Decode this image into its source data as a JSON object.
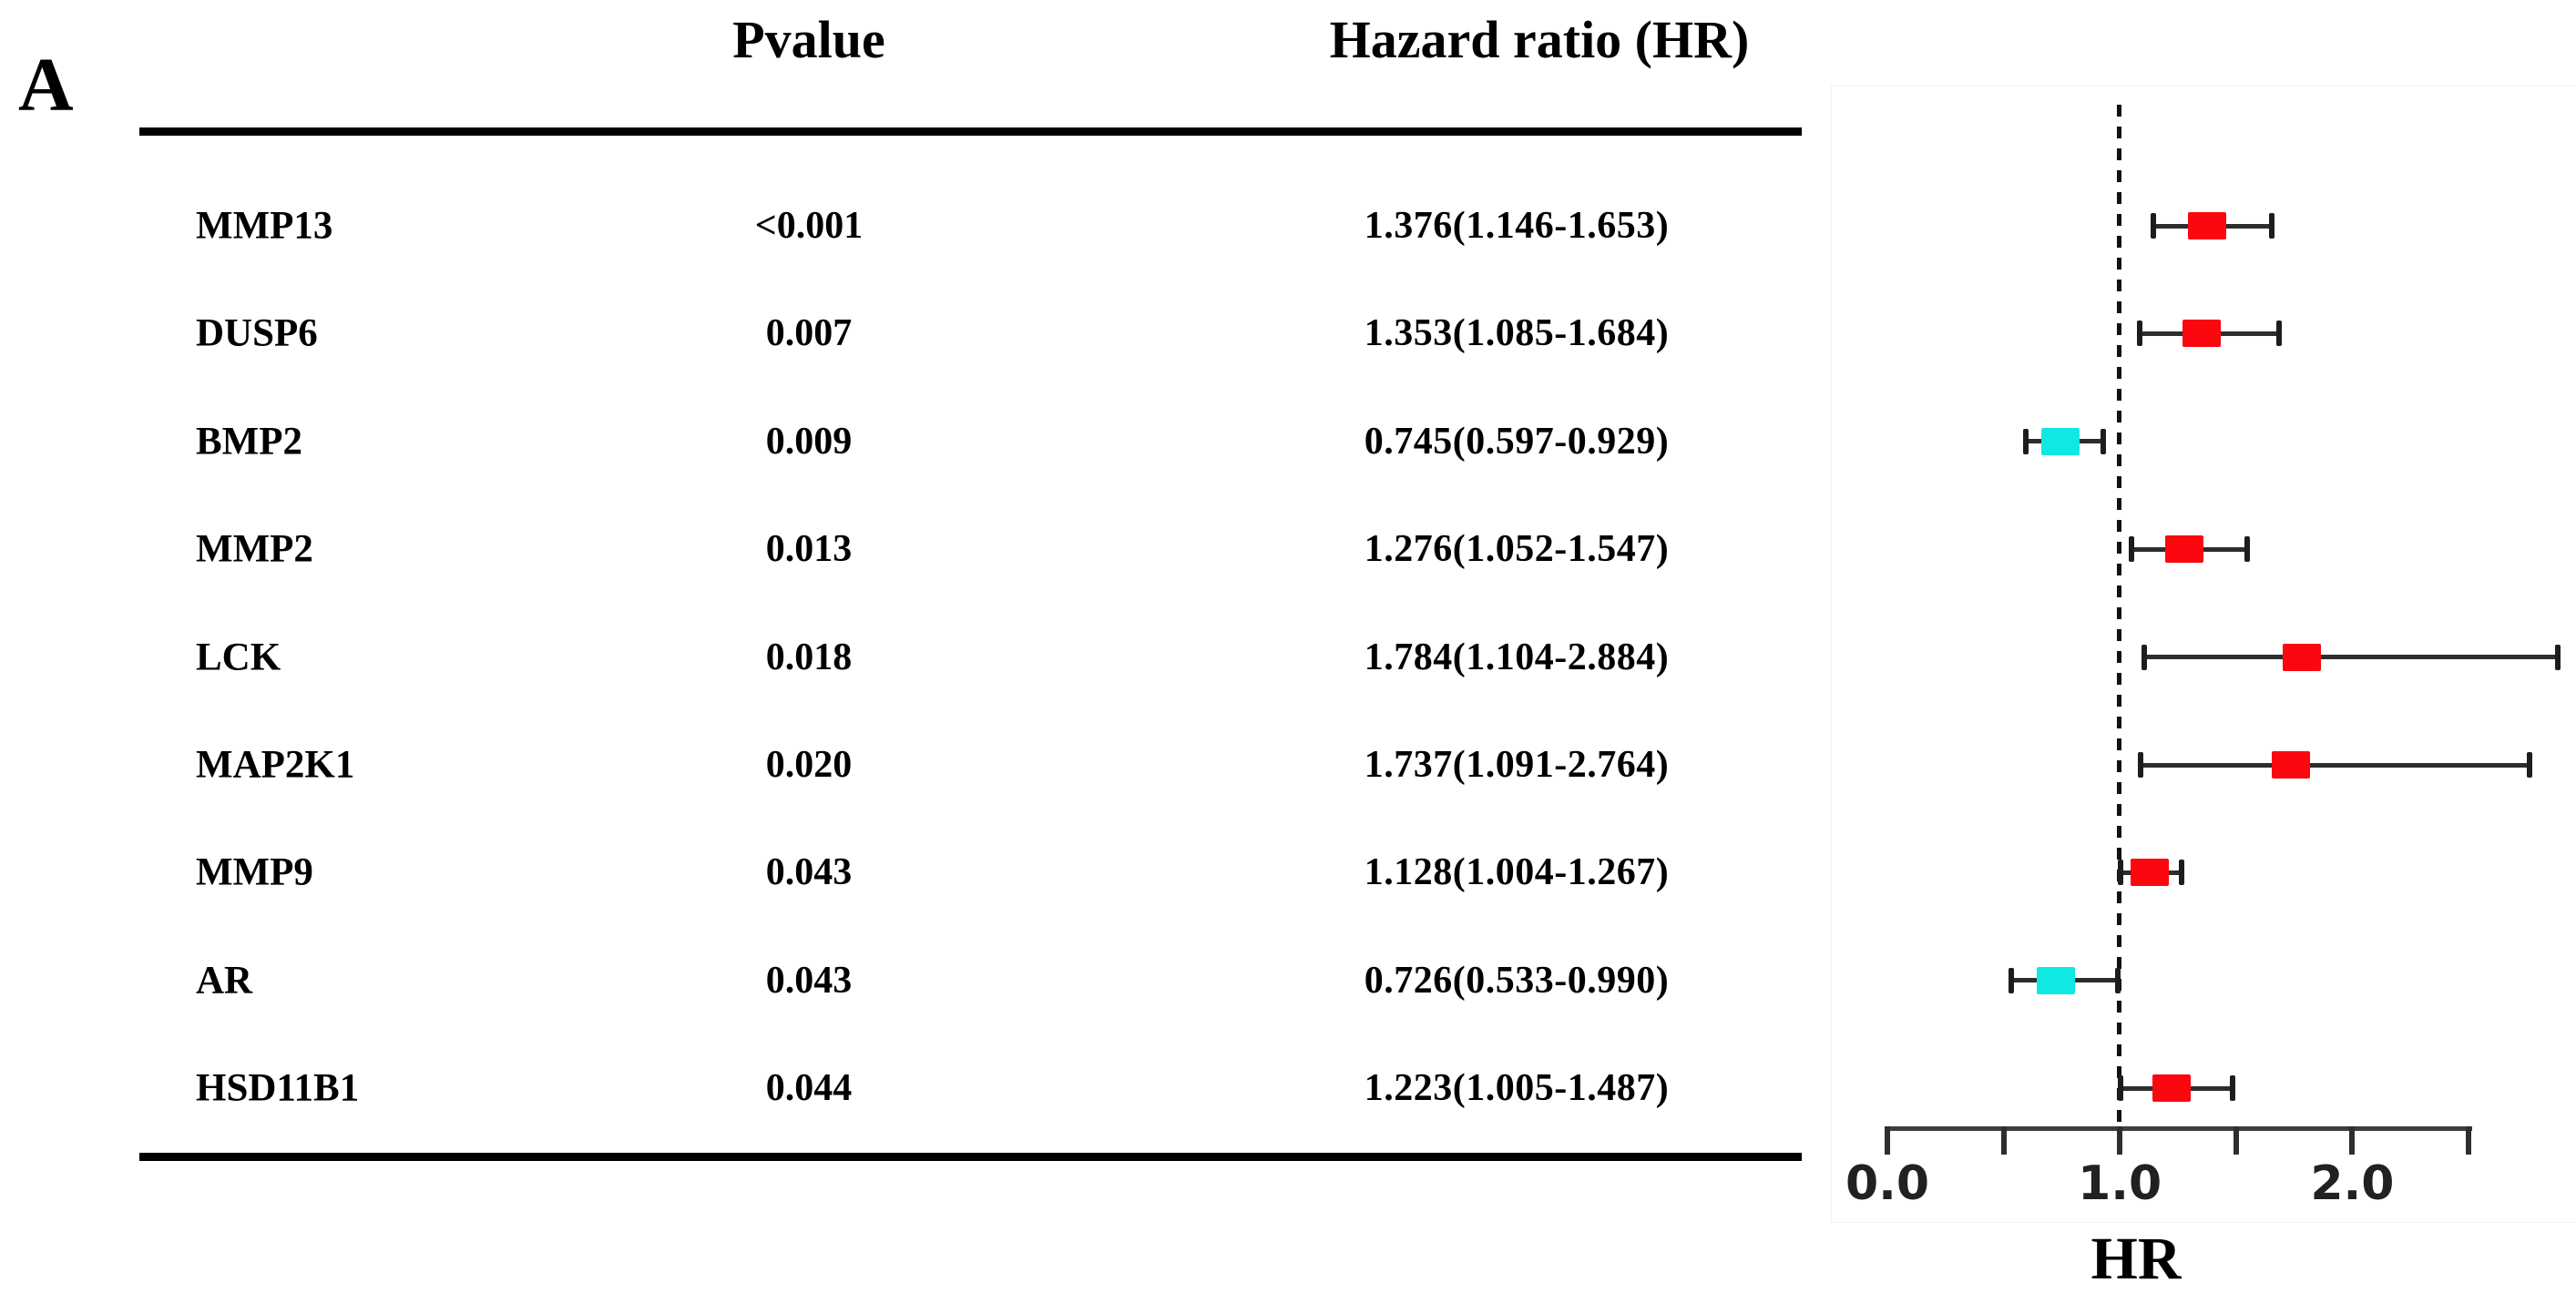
{
  "panel_label": "A",
  "table": {
    "headers": {
      "pvalue": "Pvalue",
      "hazard_ratio": "Hazard ratio (HR)"
    },
    "rows": [
      {
        "gene": "MMP13",
        "pvalue": "<0.001",
        "hr_text": "1.376(1.146-1.653)",
        "hr": 1.376,
        "ci_low": 1.146,
        "ci_high": 1.653,
        "effect": "risk"
      },
      {
        "gene": "DUSP6",
        "pvalue": "0.007",
        "hr_text": "1.353(1.085-1.684)",
        "hr": 1.353,
        "ci_low": 1.085,
        "ci_high": 1.684,
        "effect": "risk"
      },
      {
        "gene": "BMP2",
        "pvalue": "0.009",
        "hr_text": "0.745(0.597-0.929)",
        "hr": 0.745,
        "ci_low": 0.597,
        "ci_high": 0.929,
        "effect": "protective"
      },
      {
        "gene": "MMP2",
        "pvalue": "0.013",
        "hr_text": "1.276(1.052-1.547)",
        "hr": 1.276,
        "ci_low": 1.052,
        "ci_high": 1.547,
        "effect": "risk"
      },
      {
        "gene": "LCK",
        "pvalue": "0.018",
        "hr_text": "1.784(1.104-2.884)",
        "hr": 1.784,
        "ci_low": 1.104,
        "ci_high": 2.884,
        "effect": "risk"
      },
      {
        "gene": "MAP2K1",
        "pvalue": "0.020",
        "hr_text": "1.737(1.091-2.764)",
        "hr": 1.737,
        "ci_low": 1.091,
        "ci_high": 2.764,
        "effect": "risk"
      },
      {
        "gene": "MMP9",
        "pvalue": "0.043",
        "hr_text": "1.128(1.004-1.267)",
        "hr": 1.128,
        "ci_low": 1.004,
        "ci_high": 1.267,
        "effect": "risk"
      },
      {
        "gene": "AR",
        "pvalue": "0.043",
        "hr_text": "0.726(0.533-0.990)",
        "hr": 0.726,
        "ci_low": 0.533,
        "ci_high": 0.99,
        "effect": "protective"
      },
      {
        "gene": "HSD11B1",
        "pvalue": "0.044",
        "hr_text": "1.223(1.005-1.487)",
        "hr": 1.223,
        "ci_low": 1.005,
        "ci_high": 1.487,
        "effect": "risk"
      }
    ]
  },
  "plot": {
    "axis_title": "HR",
    "tick_labels": [
      "0.0",
      "1.0",
      "2.0"
    ],
    "colors": {
      "risk": "#fa0710",
      "protective": "#0fe9e1"
    }
  },
  "chart_data": {
    "type": "scatter",
    "subtype": "forest-plot",
    "title": "",
    "xlabel": "HR",
    "ylabel": "",
    "categories": [
      "MMP13",
      "DUSP6",
      "BMP2",
      "MMP2",
      "LCK",
      "MAP2K1",
      "MMP9",
      "AR",
      "HSD11B1"
    ],
    "series": [
      {
        "name": "Hazard ratio (95% CI)",
        "values": [
          1.376,
          1.353,
          0.745,
          1.276,
          1.784,
          1.737,
          1.128,
          0.726,
          1.223
        ],
        "ci_low": [
          1.146,
          1.085,
          0.597,
          1.052,
          1.104,
          1.091,
          1.004,
          0.533,
          1.005
        ],
        "ci_high": [
          1.653,
          1.684,
          0.929,
          1.547,
          2.884,
          2.764,
          1.267,
          0.99,
          1.487
        ],
        "pvalues": [
          "<0.001",
          "0.007",
          "0.009",
          "0.013",
          "0.018",
          "0.020",
          "0.043",
          "0.043",
          "0.044"
        ]
      }
    ],
    "xlim": [
      0.0,
      2.5
    ],
    "xticks": [
      0.0,
      0.5,
      1.0,
      1.5,
      2.0,
      2.5
    ],
    "xtick_labels_shown": [
      "0.0",
      "1.0",
      "2.0"
    ],
    "reference_line_x": 1.0,
    "grid": false,
    "legend_position": "none",
    "marker_color_rule": "red if HR > 1 (risk), cyan if HR < 1 (protective)"
  }
}
